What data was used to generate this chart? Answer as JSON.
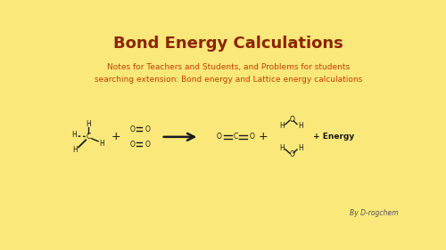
{
  "background_color": "#FAE87A",
  "title": "Bond Energy Calculations",
  "title_color": "#8B2500",
  "title_fontsize": 13,
  "subtitle_line1": "Notes for Teachers and Students, and Problems for students",
  "subtitle_line2": "searching extension: Bond energy and Lattice energy calculations",
  "subtitle_color": "#C04000",
  "subtitle_fontsize": 6.5,
  "molecule_color": "#1a1a1a",
  "credit": "By D-rogchem",
  "credit_color": "#555555",
  "credit_fontsize": 5.5
}
